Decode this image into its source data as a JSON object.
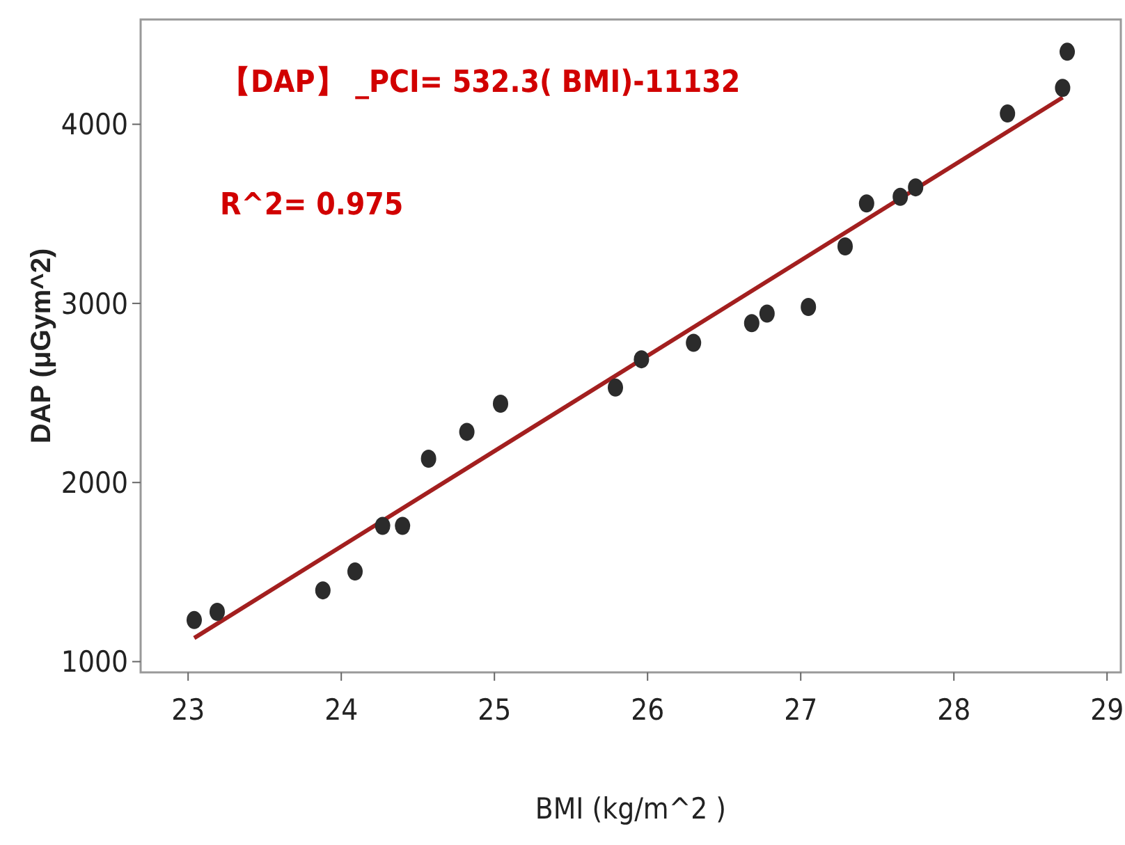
{
  "chart_data": {
    "type": "scatter",
    "xlabel": "BMI (kg/m^2 )",
    "ylabel": "DAP (μGym^2)",
    "xlim": [
      22.69,
      29.09
    ],
    "xticks": [
      23,
      24,
      25,
      26,
      27,
      28,
      29
    ],
    "ylim": [
      940,
      4585
    ],
    "yticks": [
      1000,
      2000,
      3000,
      4000
    ],
    "grid": false,
    "marker": "circle",
    "annotations": [
      "【DAP】 _PCI= 532.3( BMI)-11132",
      "R^2= 0.975"
    ],
    "series": [
      {
        "color": "#2b2b2b",
        "x": [
          23.04,
          23.19,
          23.88,
          24.09,
          24.27,
          24.4,
          24.57,
          24.82,
          25.04,
          25.79,
          25.96,
          26.3,
          26.68,
          26.78,
          27.05,
          27.29,
          27.43,
          27.65,
          27.75,
          28.35,
          28.71,
          28.74
        ],
        "values": [
          1232,
          1278,
          1398,
          1503,
          1758,
          1758,
          2133,
          2283,
          2440,
          2530,
          2688,
          2780,
          2890,
          2943,
          2980,
          3318,
          3558,
          3595,
          3648,
          4060,
          4203,
          4405
        ]
      },
      {
        "type": "line",
        "marker": "none",
        "color": "#a31f1f",
        "x": [
          23.04,
          28.71
        ],
        "values": [
          1132,
          4150
        ]
      }
    ]
  }
}
